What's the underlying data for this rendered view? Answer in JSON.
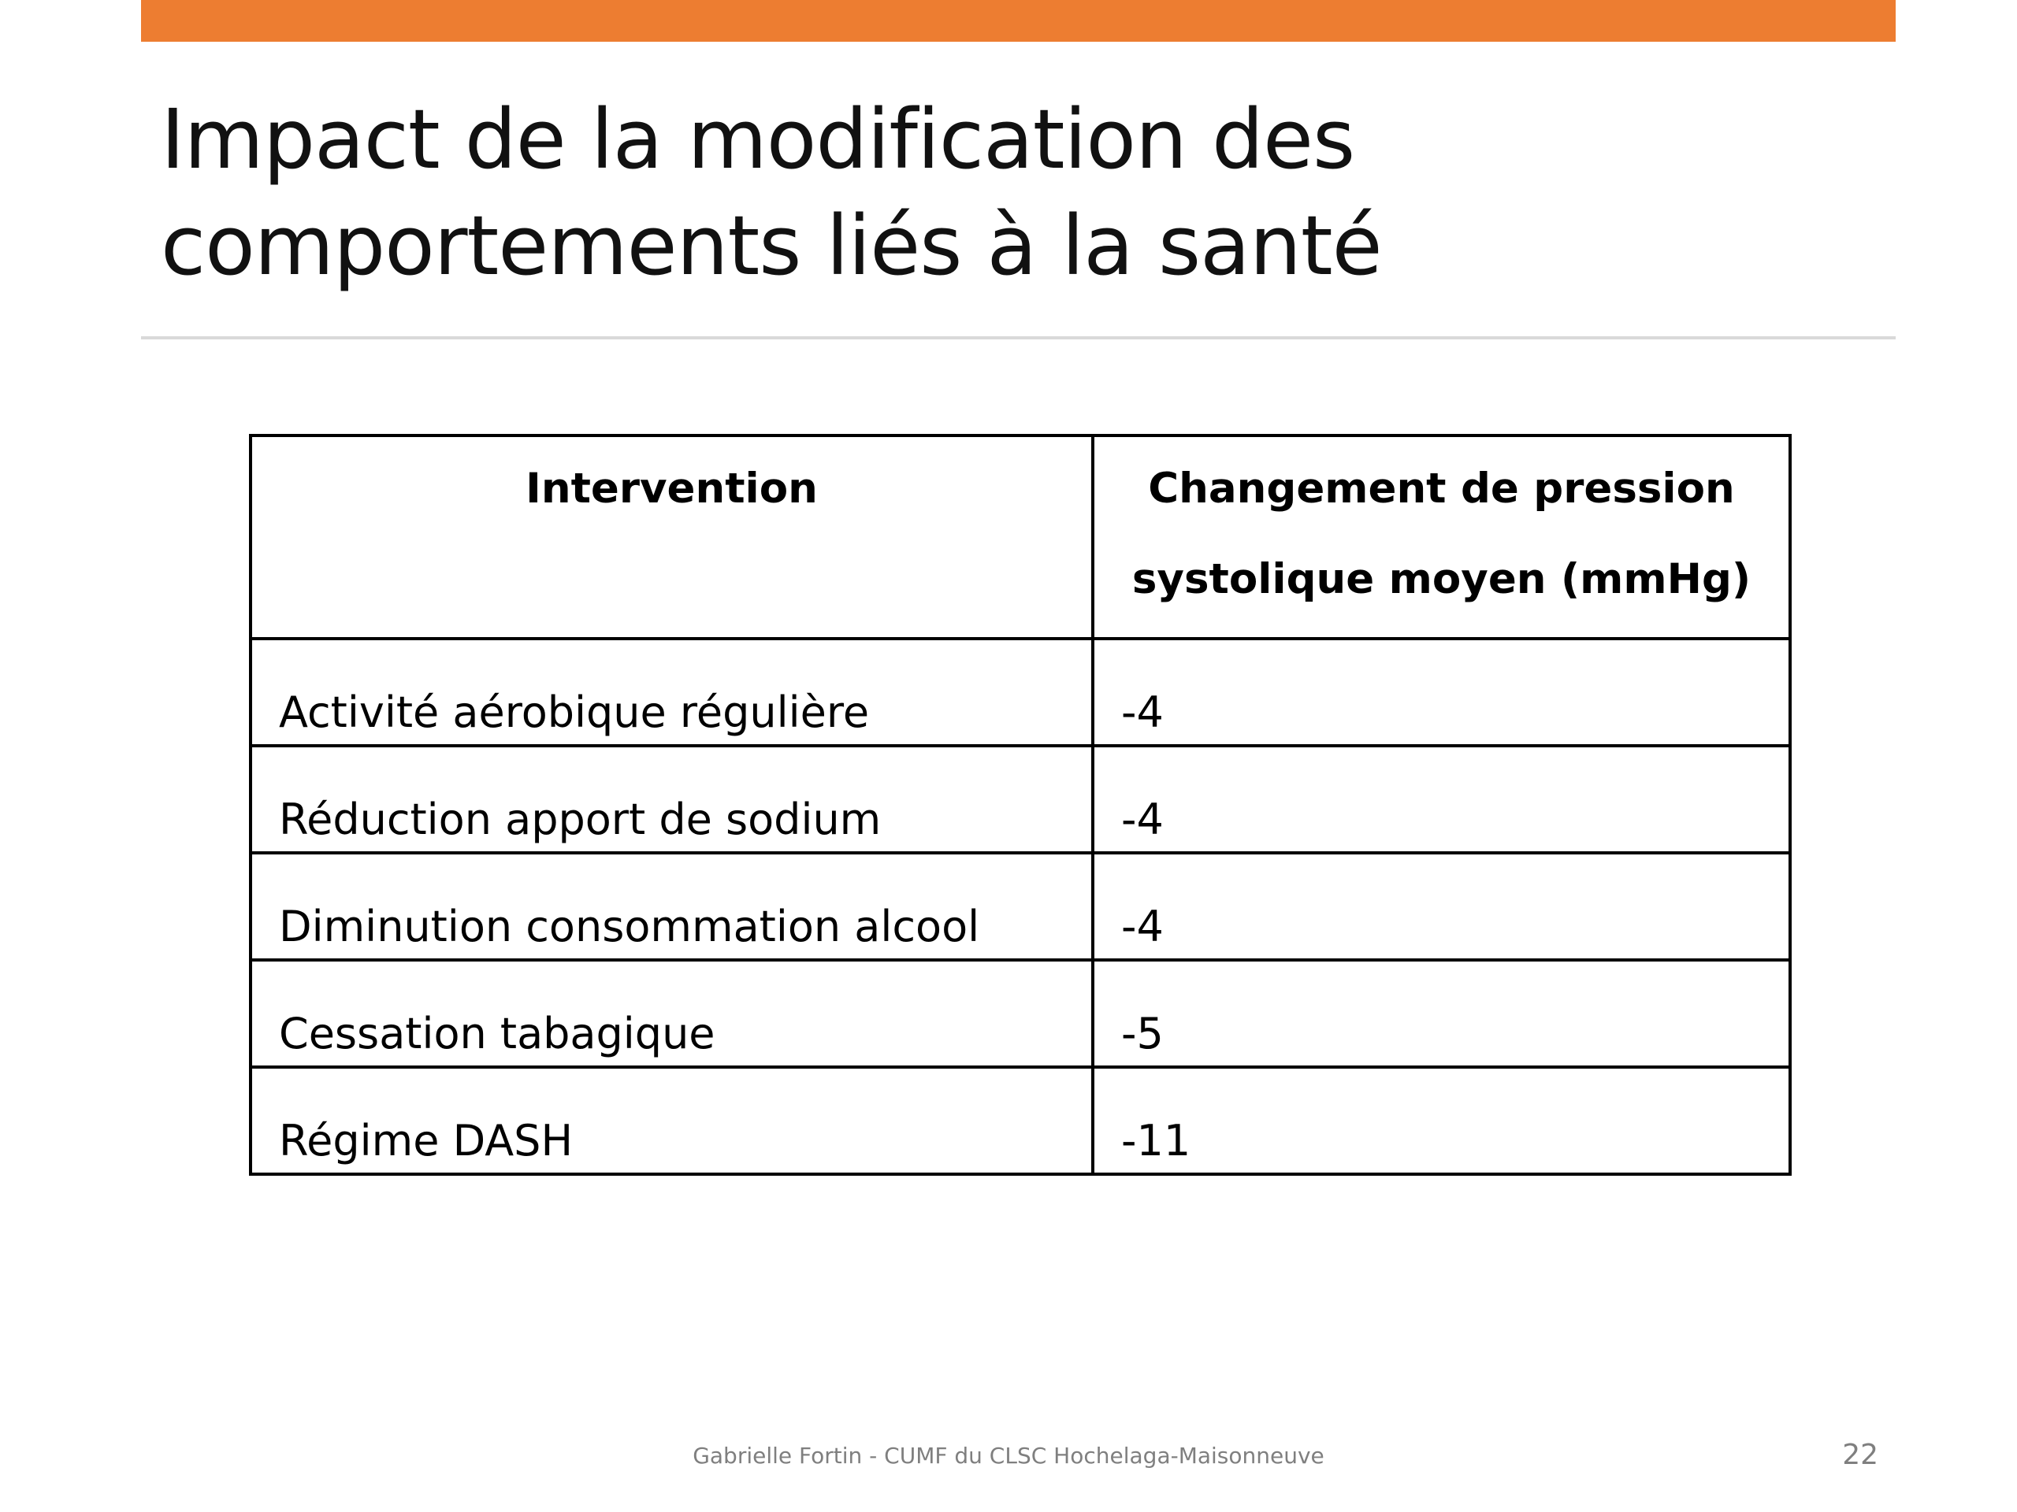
{
  "slide": {
    "title_lines": [
      "Impact de la modification des",
      "comportements liés à la santé"
    ],
    "accent_color": "#ED7D31",
    "footer": "Gabrielle Fortin - CUMF du CLSC Hochelaga-Maisonneuve",
    "page_number": "22"
  },
  "table": {
    "headers": [
      "Intervention",
      "Changement de pression systolique moyen (mmHg)"
    ],
    "rows": [
      [
        "Activité aérobique régulière",
        "-4"
      ],
      [
        "Réduction apport de sodium",
        "-4"
      ],
      [
        "Diminution consommation alcool",
        "-4"
      ],
      [
        "Cessation tabagique",
        "-5"
      ],
      [
        "Régime DASH",
        "-11"
      ]
    ]
  }
}
